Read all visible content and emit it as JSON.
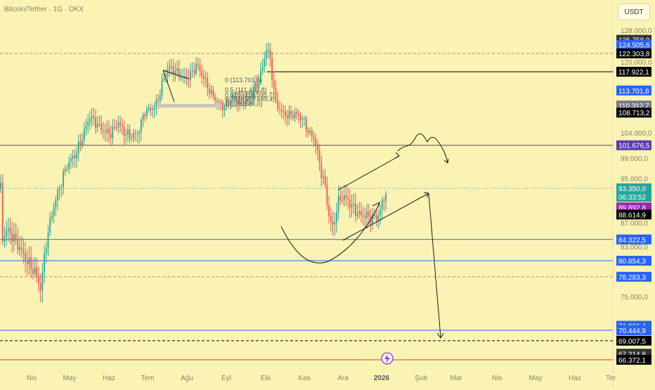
{
  "header": {
    "symbol": "Bitcoin/Tether · 1G · OKX",
    "unit_button": "USDT"
  },
  "chart_data": {
    "type": "candlestick",
    "title": "Bitcoin/Tether · 1G · OKX",
    "price_axis": {
      "ticks": [
        "128.000,0",
        "120.000,0",
        "104.000,0",
        "99.000,0",
        "95.000,0",
        "87.000,0",
        "83.000,0",
        "75.000,0"
      ],
      "tick_values": [
        128000,
        120000,
        104000,
        99000,
        95000,
        87000,
        83000,
        75000
      ]
    },
    "time_axis": [
      "Nis",
      "May",
      "Haz",
      "Tem",
      "Ağu",
      "Eyl",
      "Eki",
      "Kas",
      "Ara",
      "2026",
      "Şub",
      "Mar",
      "Nis",
      "May",
      "Haz",
      "Ter"
    ],
    "price_labels": [
      {
        "text": "125.758,0",
        "value": 125758,
        "color": "#333333"
      },
      {
        "text": "124.505,6",
        "value": 124505.6,
        "color": "#2962ff"
      },
      {
        "text": "122.303,8",
        "value": 122303.8,
        "color": "#000000"
      },
      {
        "text": "117.922,1",
        "value": 117922.1,
        "color": "#000000"
      },
      {
        "text": "113.701,6",
        "value": 113701.6,
        "color": "#2962ff"
      },
      {
        "text": "110.312,7",
        "value": 110312.7,
        "color": "#787b86"
      },
      {
        "text": "108.713,2",
        "value": 108713.2,
        "color": "#000000"
      },
      {
        "text": "101.676,5",
        "value": 101676.5,
        "color": "#5b3bb5"
      },
      {
        "text": "93.350,0",
        "value": 93350,
        "color": "#26a69a"
      },
      {
        "text": "06:33:52",
        "value": 91800,
        "color": "#26a69a"
      },
      {
        "text": "89.892,8",
        "value": 89892.8,
        "color": "#9c27b0"
      },
      {
        "text": "88.614,9",
        "value": 88614.9,
        "color": "#000000"
      },
      {
        "text": "84.322,5",
        "value": 84322.5,
        "color": "#2962ff"
      },
      {
        "text": "80.854,3",
        "value": 80854.3,
        "color": "#2962ff"
      },
      {
        "text": "78.283,3",
        "value": 78283.3,
        "color": "#2962ff"
      },
      {
        "text": "71.066,4",
        "value": 71066.4,
        "color": "#2962ff"
      },
      {
        "text": "70.444,9",
        "value": 70444.9,
        "color": "#2962ff"
      },
      {
        "text": "69.007,5",
        "value": 69007.5,
        "color": "#000000"
      },
      {
        "text": "67.214,8",
        "value": 67214.8,
        "color": "#333333"
      },
      {
        "text": "66.372,1",
        "value": 66372.1,
        "color": "#000000"
      }
    ],
    "horizontal_levels": [
      {
        "value": 122303.8,
        "color": "#e57373",
        "style": "dashed"
      },
      {
        "value": 117922.1,
        "color": "#000000",
        "style": "solid"
      },
      {
        "value": 101676.5,
        "color": "#5b3bb5",
        "style": "solid"
      },
      {
        "value": 93350,
        "color": "#26a69a",
        "style": "dotted"
      },
      {
        "value": 84322.5,
        "color": "#2962ff",
        "style": "solid"
      },
      {
        "value": 80854.3,
        "color": "#2962ff",
        "style": "solid"
      },
      {
        "value": 78283.3,
        "color": "#e57373",
        "style": "dashed"
      },
      {
        "value": 70444.9,
        "color": "#2962ff",
        "style": "solid"
      },
      {
        "value": 69007.5,
        "color": "#000000",
        "style": "dashed"
      },
      {
        "value": 66372.1,
        "color": "#e53935",
        "style": "solid"
      }
    ],
    "fib_labels": [
      "0 (113.701,6)",
      "0.5 (111.162,8)",
      "0.618 (110.595,7)",
      "0.786 (109.689,4)",
      "1 (108.680,0)"
    ],
    "colors": {
      "background": "#fbf3b4",
      "up": "#26a69a",
      "down": "#ef5350"
    }
  }
}
